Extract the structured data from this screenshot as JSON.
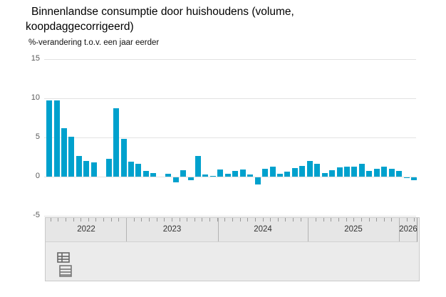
{
  "header": {
    "title_lines": [
      "Binnenlandse consumptie door huishoudens (volume,",
      "koopdaggecorrigeerd)"
    ],
    "subtitle": "%-verandering t.o.v. een jaar eerder"
  },
  "chart_data": {
    "type": "bar",
    "title": "Binnenlandse consumptie door huishoudens (volume, koopdaggecorrigeerd)",
    "ylabel": "%-verandering t.o.v. een jaar eerder",
    "xlabel": "",
    "ylim": [
      -5,
      15
    ],
    "yticks": [
      15,
      10,
      5,
      0,
      -5
    ],
    "grid": true,
    "legend": "none",
    "bar_color": "#00a1cd",
    "x": [
      "2022-01",
      "2022-02",
      "2022-03",
      "2022-04",
      "2022-05",
      "2022-06",
      "2022-07",
      "2022-08",
      "2022-09",
      "2022-10",
      "2022-11",
      "2022-12",
      "2023-01",
      "2023-02",
      "2023-03",
      "2023-04",
      "2023-05",
      "2023-06",
      "2023-07",
      "2023-08",
      "2023-09",
      "2023-10",
      "2023-11",
      "2023-12",
      "2024-01",
      "2024-02",
      "2024-03",
      "2024-04",
      "2024-05",
      "2024-06",
      "2024-07",
      "2024-08",
      "2024-09",
      "2024-10",
      "2024-11",
      "2024-12",
      "2025-01",
      "2025-02",
      "2025-03",
      "2025-04",
      "2025-05",
      "2025-06",
      "2025-07",
      "2025-08",
      "2025-09",
      "2025-10",
      "2025-11",
      "2025-12",
      "2026-01",
      "2026-02"
    ],
    "values": [
      9.7,
      9.7,
      6.2,
      5.1,
      2.6,
      2.0,
      1.8,
      0.0,
      2.3,
      8.7,
      4.8,
      1.9,
      1.6,
      0.7,
      0.5,
      0.0,
      0.4,
      -0.6,
      0.8,
      -0.4,
      2.6,
      0.3,
      0.1,
      0.9,
      0.4,
      0.7,
      0.9,
      0.3,
      -0.9,
      1.0,
      1.3,
      0.4,
      0.6,
      1.1,
      1.4,
      2.0,
      1.6,
      0.5,
      0.8,
      1.2,
      1.3,
      1.3,
      1.6,
      0.7,
      1.0,
      1.3,
      1.0,
      0.7,
      -0.1,
      -0.4
    ]
  },
  "navigator": {
    "years": [
      "2022",
      "2023",
      "2024",
      "2025",
      "2026"
    ]
  },
  "footer": {
    "table_icon": "table-view-toggle"
  },
  "colors": {
    "bar": "#00a1cd",
    "gridline": "#e2e2e2",
    "navigator_bg": "#ebebeb",
    "tick": "#999999",
    "icon": "#666666"
  }
}
